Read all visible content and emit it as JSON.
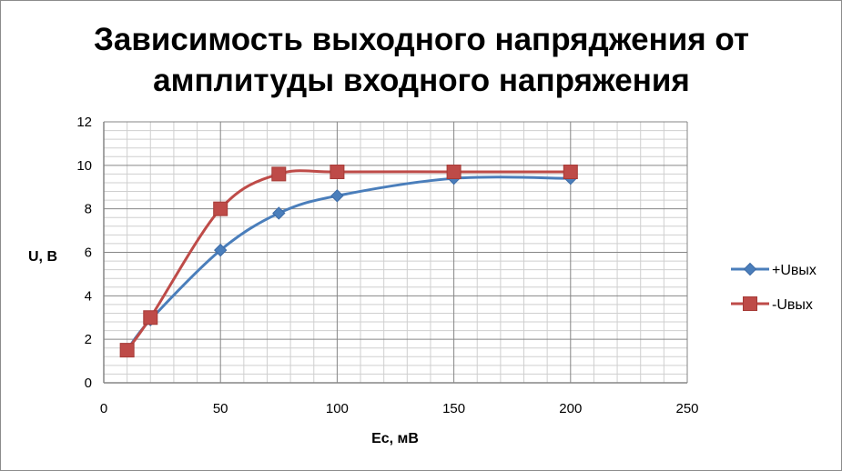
{
  "chart_data": {
    "type": "line",
    "title": [
      "Зависимость выходного напряджения от",
      "амплитуды входного напряжения"
    ],
    "xlabel": "Ec, мВ",
    "ylabel": "U, В",
    "xlim": [
      0,
      250
    ],
    "ylim": [
      0,
      12
    ],
    "xticks": [
      0,
      50,
      100,
      150,
      200,
      250
    ],
    "yticks": [
      0,
      2,
      4,
      6,
      8,
      10,
      12
    ],
    "x_minor_step": 10,
    "y_minor_step": 0.4,
    "grid": true,
    "smooth": true,
    "legend_position": "right",
    "series": [
      {
        "name": "+Uвых",
        "color": "#4a7ebb",
        "marker": "diamond",
        "x": [
          10,
          20,
          50,
          75,
          100,
          150,
          200
        ],
        "y": [
          1.5,
          2.9,
          6.1,
          7.8,
          8.6,
          9.4,
          9.4
        ]
      },
      {
        "name": "-Uвых",
        "color": "#be4b48",
        "marker": "square",
        "x": [
          10,
          20,
          50,
          75,
          100,
          150,
          200
        ],
        "y": [
          1.5,
          3.0,
          8.0,
          9.6,
          9.7,
          9.7,
          9.7
        ]
      }
    ]
  }
}
